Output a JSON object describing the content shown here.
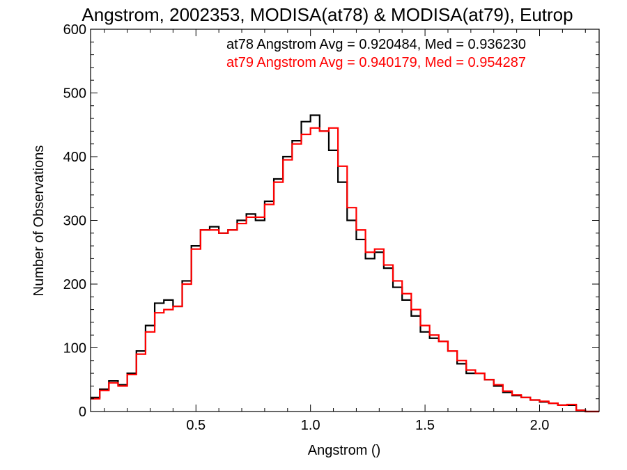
{
  "chart_data": {
    "type": "line",
    "title": "Angstrom, 2002353, MODISA(at78) & MODISA(at79), Eutrop",
    "xlabel": "Angstrom ()",
    "ylabel": "Number of Observations",
    "xlim": [
      0.04,
      2.26
    ],
    "ylim": [
      0,
      600
    ],
    "x_ticks": [
      0.5,
      1.0,
      1.5,
      2.0
    ],
    "x_tick_labels": [
      "0.5",
      "1.0",
      "1.5",
      "2.0"
    ],
    "y_ticks": [
      0,
      100,
      200,
      300,
      400,
      500,
      600
    ],
    "y_tick_labels": [
      "0",
      "100",
      "200",
      "300",
      "400",
      "500",
      "600"
    ],
    "annotations": [
      {
        "text": "at78 Angstrom Avg = 0.920484, Med = 0.936230",
        "color": "#000000"
      },
      {
        "text": "at79 Angstrom Avg = 0.940179, Med = 0.954287",
        "color": "#ff0000"
      }
    ],
    "grid": false,
    "step_style": "histogram-steps",
    "series": [
      {
        "name": "at78",
        "color": "#000000",
        "x": [
          0.04,
          0.08,
          0.12,
          0.16,
          0.2,
          0.24,
          0.28,
          0.32,
          0.36,
          0.4,
          0.44,
          0.48,
          0.52,
          0.56,
          0.6,
          0.64,
          0.68,
          0.72,
          0.76,
          0.8,
          0.84,
          0.88,
          0.92,
          0.96,
          1.0,
          1.04,
          1.08,
          1.12,
          1.16,
          1.2,
          1.24,
          1.28,
          1.32,
          1.36,
          1.4,
          1.44,
          1.48,
          1.52,
          1.56,
          1.6,
          1.64,
          1.68,
          1.72,
          1.76,
          1.8,
          1.84,
          1.88,
          1.92,
          1.96,
          2.0,
          2.04,
          2.08,
          2.12,
          2.16,
          2.2,
          2.24
        ],
        "values": [
          22,
          35,
          48,
          42,
          60,
          95,
          135,
          170,
          175,
          165,
          205,
          260,
          285,
          290,
          280,
          285,
          300,
          310,
          300,
          330,
          365,
          400,
          425,
          455,
          465,
          440,
          410,
          360,
          300,
          270,
          240,
          250,
          225,
          195,
          175,
          150,
          125,
          115,
          110,
          95,
          75,
          60,
          60,
          50,
          40,
          30,
          25,
          22,
          18,
          15,
          13,
          10,
          10,
          2,
          0,
          0
        ]
      },
      {
        "name": "at79",
        "color": "#ff0000",
        "x": [
          0.04,
          0.08,
          0.12,
          0.16,
          0.2,
          0.24,
          0.28,
          0.32,
          0.36,
          0.4,
          0.44,
          0.48,
          0.52,
          0.56,
          0.6,
          0.64,
          0.68,
          0.72,
          0.76,
          0.8,
          0.84,
          0.88,
          0.92,
          0.96,
          1.0,
          1.04,
          1.08,
          1.12,
          1.16,
          1.2,
          1.24,
          1.28,
          1.32,
          1.36,
          1.4,
          1.44,
          1.48,
          1.52,
          1.56,
          1.6,
          1.64,
          1.68,
          1.72,
          1.76,
          1.8,
          1.84,
          1.88,
          1.92,
          1.96,
          2.0,
          2.04,
          2.08,
          2.12,
          2.16,
          2.2,
          2.24
        ],
        "values": [
          20,
          33,
          45,
          40,
          58,
          90,
          125,
          155,
          160,
          165,
          200,
          255,
          285,
          285,
          280,
          285,
          295,
          305,
          305,
          325,
          360,
          395,
          420,
          435,
          445,
          440,
          445,
          385,
          320,
          285,
          250,
          255,
          230,
          205,
          185,
          160,
          135,
          120,
          110,
          95,
          80,
          65,
          60,
          50,
          42,
          32,
          26,
          22,
          18,
          16,
          13,
          10,
          11,
          2,
          0,
          0
        ]
      }
    ]
  }
}
